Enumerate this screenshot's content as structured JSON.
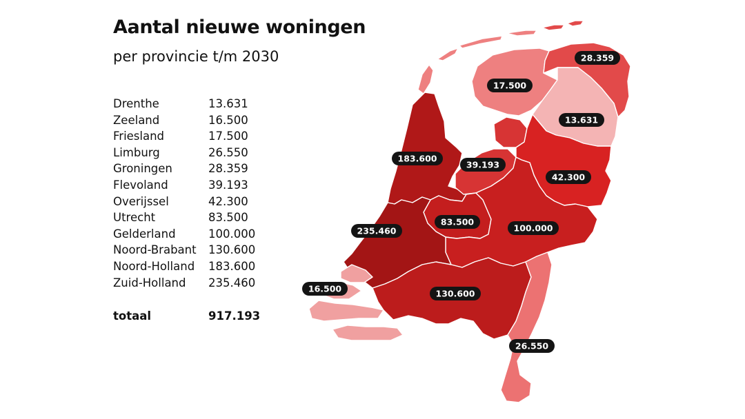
{
  "title": "Aantal nieuwe woningen",
  "subtitle": "per provincie t/m 2030",
  "table": [
    {
      "name": "Drenthe",
      "value": "13.631"
    },
    {
      "name": "Zeeland",
      "value": "16.500"
    },
    {
      "name": "Friesland",
      "value": "17.500"
    },
    {
      "name": "Limburg",
      "value": "26.550"
    },
    {
      "name": "Groningen",
      "value": "28.359"
    },
    {
      "name": "Flevoland",
      "value": "39.193"
    },
    {
      "name": "Overijssel",
      "value": "42.300"
    },
    {
      "name": "Utrecht",
      "value": "83.500"
    },
    {
      "name": "Gelderland",
      "value": "100.000"
    },
    {
      "name": "Noord-Brabant",
      "value": "130.600"
    },
    {
      "name": "Noord-Holland",
      "value": "183.600"
    },
    {
      "name": "Zuid-Holland",
      "value": "235.460"
    }
  ],
  "total": {
    "name": "totaal",
    "value": "917.193"
  },
  "map_labels": {
    "groningen": "28.359",
    "friesland": "17.500",
    "drenthe": "13.631",
    "noord_holland": "183.600",
    "flevoland": "39.193",
    "overijssel": "42.300",
    "zuid_holland": "235.460",
    "utrecht": "83.500",
    "gelderland": "100.000",
    "zeeland": "16.500",
    "noord_brabant": "130.600",
    "limburg": "26.550"
  },
  "colors": {
    "zuid_holland": "#a31515",
    "noord_holland": "#b01818",
    "noord_brabant": "#bc1c1c",
    "gelderland": "#c81f1f",
    "utrecht": "#c41e1e",
    "overijssel": "#d82222",
    "flevoland": "#d73434",
    "groningen": "#e24a4a",
    "limburg": "#ec7272",
    "friesland": "#ee8080",
    "zeeland": "#f0a0a0",
    "drenthe": "#f4b4b4",
    "water": "#ffffff"
  }
}
